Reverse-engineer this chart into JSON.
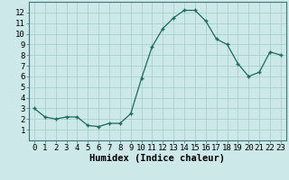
{
  "x": [
    0,
    1,
    2,
    3,
    4,
    5,
    6,
    7,
    8,
    9,
    10,
    11,
    12,
    13,
    14,
    15,
    16,
    17,
    18,
    19,
    20,
    21,
    22,
    23
  ],
  "y": [
    3.0,
    2.2,
    2.0,
    2.2,
    2.2,
    1.4,
    1.3,
    1.6,
    1.6,
    2.5,
    5.8,
    8.8,
    10.5,
    11.5,
    12.2,
    12.2,
    11.2,
    9.5,
    9.0,
    7.2,
    6.0,
    6.4,
    8.3,
    8.0
  ],
  "xlabel": "Humidex (Indice chaleur)",
  "xlim": [
    -0.5,
    23.5
  ],
  "ylim": [
    0,
    13
  ],
  "yticks": [
    1,
    2,
    3,
    4,
    5,
    6,
    7,
    8,
    9,
    10,
    11,
    12
  ],
  "xticks": [
    0,
    1,
    2,
    3,
    4,
    5,
    6,
    7,
    8,
    9,
    10,
    11,
    12,
    13,
    14,
    15,
    16,
    17,
    18,
    19,
    20,
    21,
    22,
    23
  ],
  "line_color": "#1a6b5a",
  "marker": "+",
  "bg_color": "#cce8e8",
  "grid_color": "#aacece",
  "xlabel_fontsize": 7.5,
  "tick_fontsize": 6.5
}
